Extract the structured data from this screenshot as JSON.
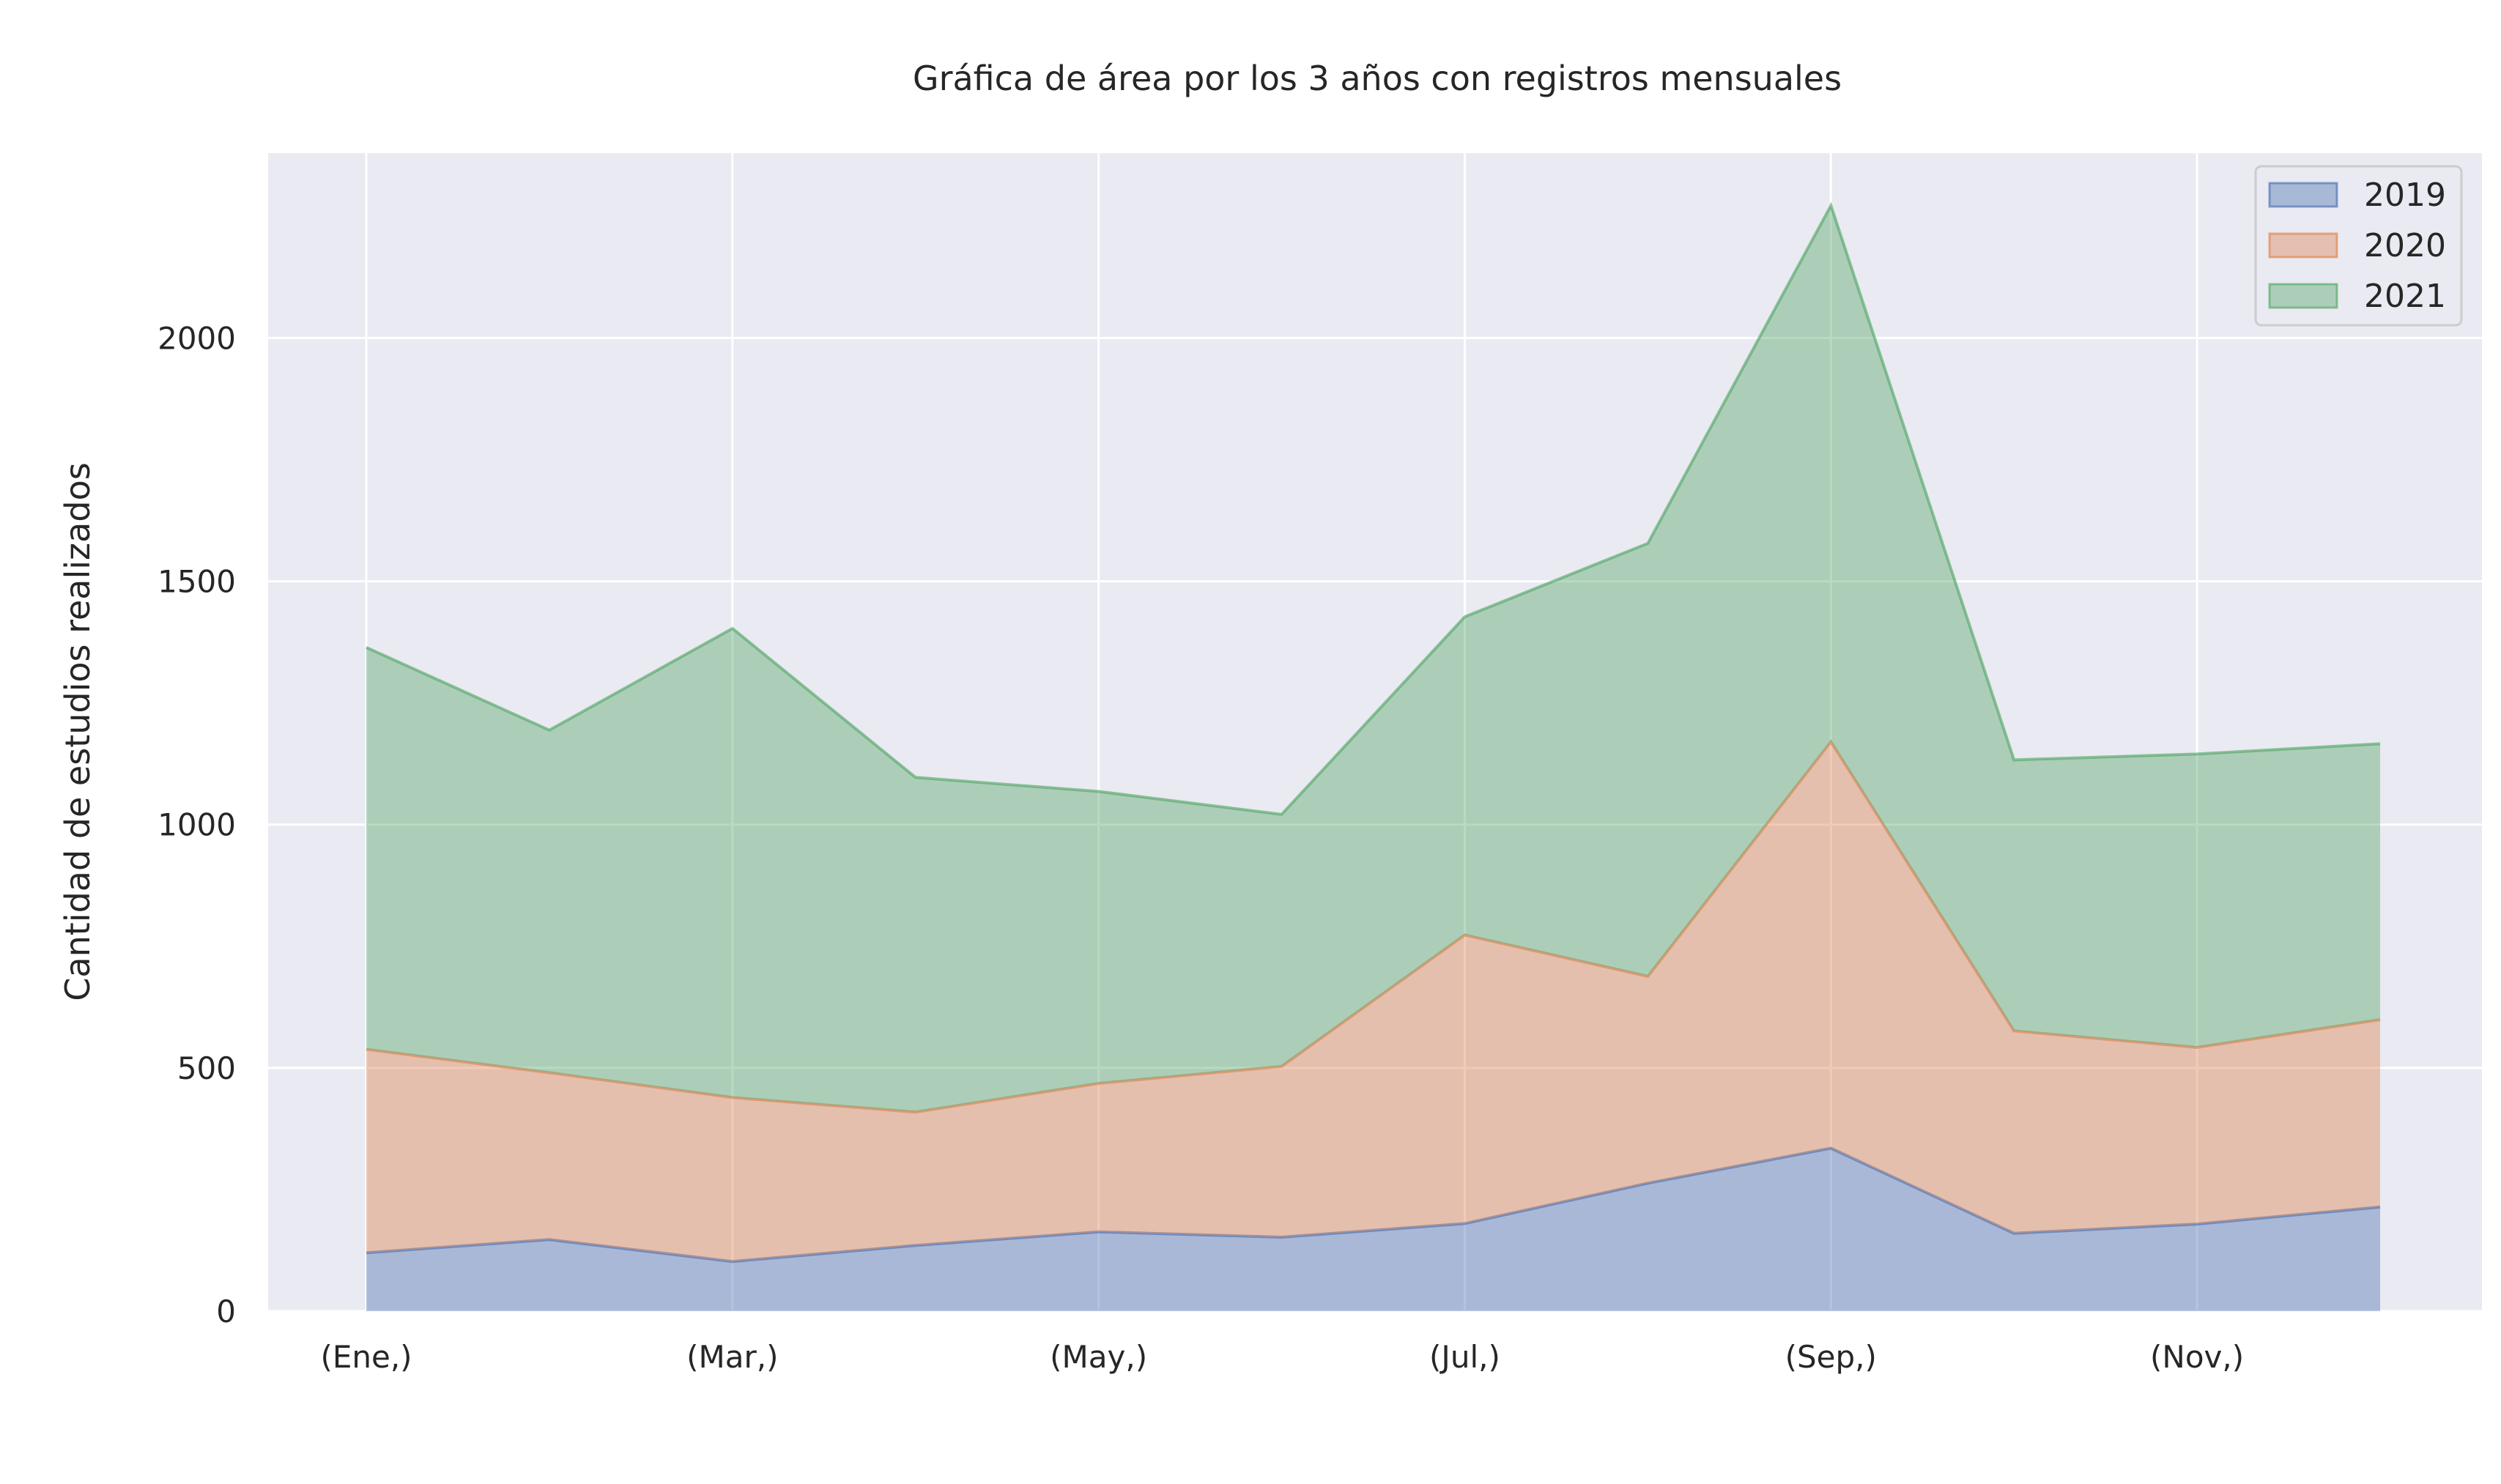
{
  "chart_data": {
    "type": "area",
    "stacked": true,
    "title": "Gráfica de área por los 3 años con registros mensuales",
    "xlabel": "",
    "ylabel": "Cantidad de estudios realizados",
    "x_tick_labels": [
      "(Ene,)",
      "(Mar,)",
      "(May,)",
      "(Jul,)",
      "(Sep,)",
      "(Nov,)"
    ],
    "x_tick_indices": [
      0,
      2,
      4,
      6,
      8,
      10
    ],
    "num_points": 12,
    "ylim": [
      0,
      2380
    ],
    "y_ticks": [
      0,
      500,
      1000,
      1500,
      2000
    ],
    "grid": true,
    "legend_position": "top-right",
    "series": [
      {
        "name": "2019",
        "color": "#4c72b0",
        "values": [
          120,
          147,
          102,
          135,
          163,
          152,
          180,
          263,
          335,
          160,
          179,
          214
        ]
      },
      {
        "name": "2020",
        "color": "#dd8452",
        "values": [
          418,
          343,
          337,
          274,
          305,
          351,
          593,
          425,
          835,
          416,
          363,
          385
        ]
      },
      {
        "name": "2021",
        "color": "#55a868",
        "values": [
          826,
          704,
          964,
          688,
          600,
          518,
          654,
          890,
          1102,
          557,
          603,
          567
        ]
      }
    ]
  }
}
